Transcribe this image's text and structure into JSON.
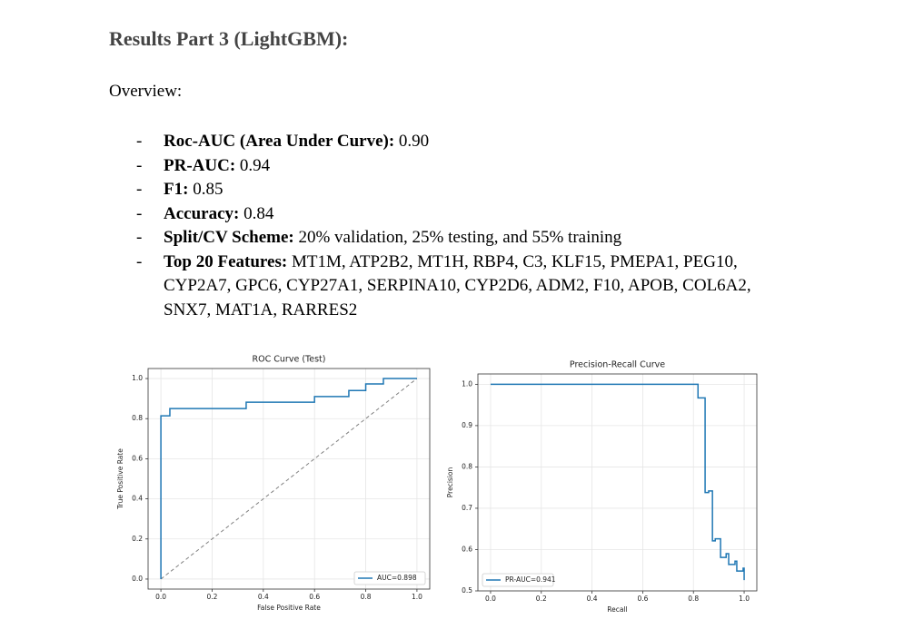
{
  "title": "Results Part 3 (LightGBM):",
  "overview": "Overview:",
  "items": [
    {
      "label": "Roc-AUC (Area Under Curve):",
      "text": "0.90"
    },
    {
      "label": "PR-AUC:",
      "text": "0.94"
    },
    {
      "label": "F1:",
      "text": "0.85"
    },
    {
      "label": "Accuracy:",
      "text": "0.84"
    },
    {
      "label": "Split/CV Scheme:",
      "text": "20% validation, 25% testing, and 55% training"
    },
    {
      "label": "Top 20 Features:",
      "text": "MT1M, ATP2B2, MT1H, RBP4, C3, KLF15, PMEPA1, PEG10, CYP2A7, GPC6, CYP27A1, SERPINA10, CYP2D6, ADM2, F10, APOB, COL6A2, SNX7, MAT1A, RARRES2"
    }
  ],
  "chart_data": [
    {
      "type": "line",
      "title": "ROC Curve (Test)",
      "xlabel": "False Positive Rate",
      "ylabel": "True Positive Rate",
      "xlim": [
        -0.05,
        1.05
      ],
      "ylim": [
        -0.05,
        1.05
      ],
      "xticks": [
        {
          "value": 0,
          "label": "0.0"
        },
        0.2,
        0.4,
        0.6,
        0.8,
        {
          "value": 1,
          "label": "1.0"
        }
      ],
      "yticks": [
        {
          "value": 0,
          "label": "0.0"
        },
        0.2,
        0.4,
        0.6,
        0.8,
        {
          "value": 1,
          "label": "1.0"
        }
      ],
      "grid": true,
      "legend": "lower right",
      "series": [
        {
          "name": "AUC=0.898",
          "color": "#1f77b4",
          "x": [
            0,
            0,
            0.035,
            0.035,
            0.333,
            0.333,
            0.6,
            0.6,
            0.734,
            0.734,
            0.8,
            0.8,
            0.869,
            0.869,
            1.0
          ],
          "values": [
            0,
            0.814,
            0.814,
            0.85,
            0.85,
            0.882,
            0.882,
            0.91,
            0.91,
            0.94,
            0.94,
            0.973,
            0.973,
            1.0,
            1.0
          ]
        }
      ],
      "reference_line": {
        "x": [
          0,
          1
        ],
        "values": [
          0,
          1
        ],
        "color": "#808080",
        "dashed": true
      }
    },
    {
      "type": "line",
      "title": "Precision-Recall Curve",
      "xlabel": "Recall",
      "ylabel": "Precision",
      "xlim": [
        -0.05,
        1.05
      ],
      "ylim": [
        0.5,
        1.025
      ],
      "xticks": [
        {
          "value": 0,
          "label": "0.0"
        },
        0.2,
        0.4,
        0.6,
        0.8,
        {
          "value": 1,
          "label": "1.0"
        }
      ],
      "yticks": [
        0.5,
        0.6,
        0.7,
        0.8,
        0.9,
        {
          "value": 1,
          "label": "1.0"
        }
      ],
      "grid": true,
      "legend": "lower left",
      "series": [
        {
          "name": "PR-AUC=0.941",
          "color": "#1f77b4",
          "x": [
            0,
            0.818,
            0.818,
            0.846,
            0.846,
            0.86,
            0.86,
            0.875,
            0.875,
            0.886,
            0.886,
            0.907,
            0.907,
            0.929,
            0.929,
            0.939,
            0.939,
            0.964,
            0.964,
            0.971,
            0.971,
            0.996,
            0.996,
            1.0,
            1.0
          ],
          "values": [
            1.0,
            1.0,
            0.967,
            0.967,
            0.738,
            0.738,
            0.742,
            0.742,
            0.621,
            0.621,
            0.626,
            0.626,
            0.581,
            0.581,
            0.59,
            0.59,
            0.564,
            0.564,
            0.572,
            0.572,
            0.548,
            0.548,
            0.555,
            0.555,
            0.526
          ]
        }
      ]
    }
  ]
}
